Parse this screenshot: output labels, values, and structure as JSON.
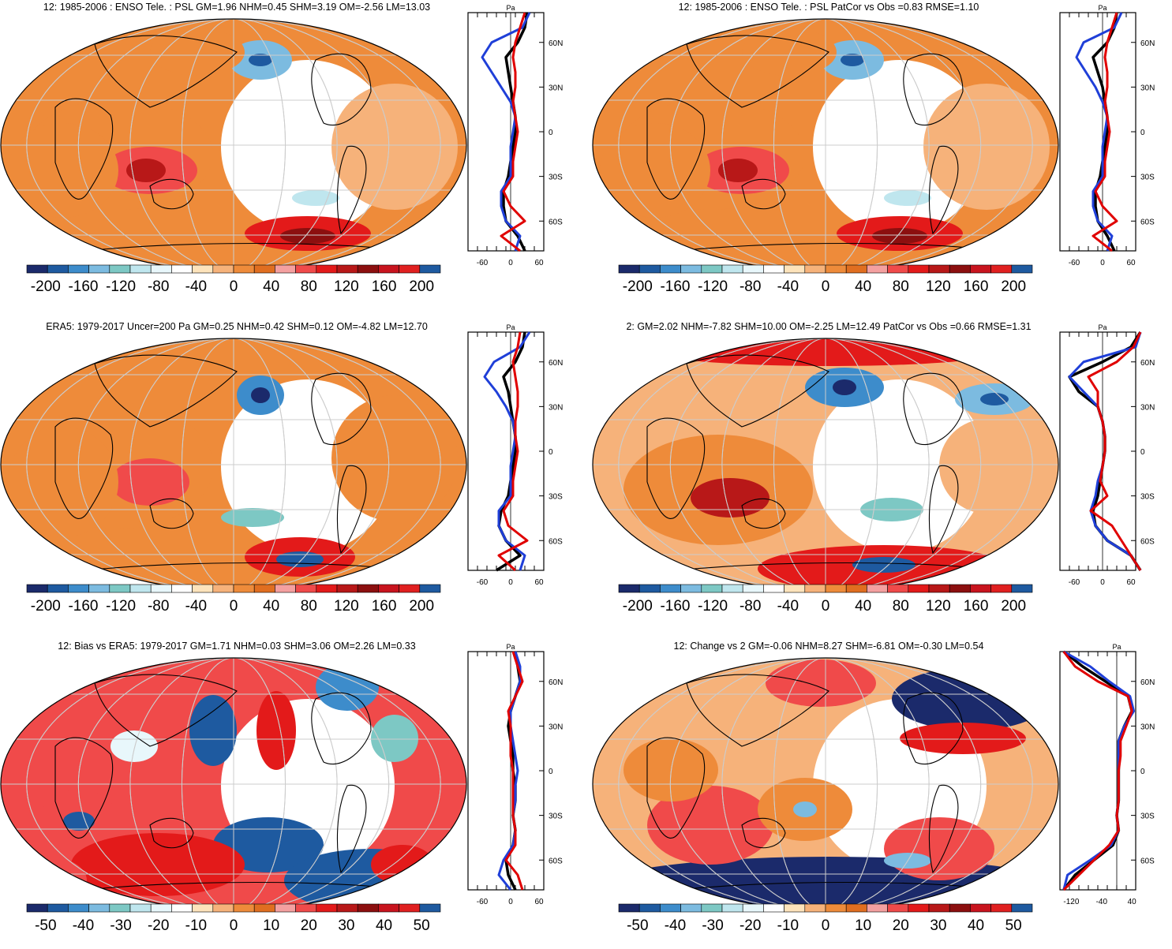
{
  "palette": [
    "#1b2a6b",
    "#1e5aa0",
    "#3d8ccb",
    "#7cbbe0",
    "#7dc8c4",
    "#bfe6ee",
    "#e8f7fb",
    "#ffffff",
    "#fde3bb",
    "#f6b27a",
    "#ee8b3a",
    "#e06e20",
    "#f4a0a0",
    "#f04a4a",
    "#e31a1a",
    "#b81818",
    "#8c0f0f",
    "#c8141e",
    "#e02020",
    "#1e5aa0"
  ],
  "panels": [
    {
      "title": "12: 1985-2006 : ENSO Tele. : PSL GM=1.96 NHM=0.45 SHM=3.19 OM=-2.56 LM=13.03",
      "colorbar_labels": [
        "-200",
        "-160",
        "-120",
        "-80",
        "-40",
        "0",
        "40",
        "80",
        "120",
        "160",
        "200"
      ],
      "zonal_unit": "Pa",
      "zonal_ticks": [
        "-60",
        "0",
        "60"
      ],
      "lat_labels": [
        "60N",
        "30N",
        "0",
        "30S",
        "60S"
      ]
    },
    {
      "title": "12: 1985-2006 : ENSO Tele. : PSL PatCor vs Obs =0.83 RMSE=1.10",
      "colorbar_labels": [
        "-200",
        "-160",
        "-120",
        "-80",
        "-40",
        "0",
        "40",
        "80",
        "120",
        "160",
        "200"
      ],
      "zonal_unit": "Pa",
      "zonal_ticks": [
        "-60",
        "0",
        "60"
      ],
      "lat_labels": [
        "60N",
        "30N",
        "0",
        "30S",
        "60S"
      ]
    },
    {
      "title": "ERA5: 1979-2017 Uncer=200 Pa GM=0.25 NHM=0.42 SHM=0.12 OM=-4.82 LM=12.70",
      "colorbar_labels": [
        "-200",
        "-160",
        "-120",
        "-80",
        "-40",
        "0",
        "40",
        "80",
        "120",
        "160",
        "200"
      ],
      "zonal_unit": "Pa",
      "zonal_ticks": [
        "-60",
        "0",
        "60"
      ],
      "lat_labels": [
        "60N",
        "30N",
        "0",
        "30S",
        "60S"
      ]
    },
    {
      "title": "2: GM=2.02 NHM=-7.82 SHM=10.00 OM=-2.25 LM=12.49 PatCor vs Obs =0.66 RMSE=1.31",
      "colorbar_labels": [
        "-200",
        "-160",
        "-120",
        "-80",
        "-40",
        "0",
        "40",
        "80",
        "120",
        "160",
        "200"
      ],
      "zonal_unit": "Pa",
      "zonal_ticks": [
        "-60",
        "0",
        "60"
      ],
      "lat_labels": [
        "60N",
        "30N",
        "0",
        "30S",
        "60S"
      ]
    },
    {
      "title": "12: Bias vs ERA5: 1979-2017 GM=1.71 NHM=0.03 SHM=3.06 OM=2.26 LM=0.33",
      "colorbar_labels": [
        "-50",
        "-40",
        "-30",
        "-20",
        "-10",
        "0",
        "10",
        "20",
        "30",
        "40",
        "50"
      ],
      "zonal_unit": "Pa",
      "zonal_ticks": [
        "-60",
        "0",
        "60"
      ],
      "lat_labels": [
        "60N",
        "30N",
        "0",
        "30S",
        "60S"
      ]
    },
    {
      "title": "12: Change vs 2 GM=-0.06 NHM=8.27 SHM=-6.81 OM=-0.30 LM=0.54",
      "colorbar_labels": [
        "-50",
        "-40",
        "-30",
        "-20",
        "-10",
        "0",
        "10",
        "20",
        "30",
        "40",
        "50"
      ],
      "zonal_unit": "Pa",
      "zonal_ticks": [
        "-120",
        "-40",
        "40"
      ],
      "lat_labels": [
        "60N",
        "30N",
        "0",
        "30S",
        "60S"
      ]
    }
  ],
  "chart_data": [
    {
      "type": "heatmap",
      "title": "12: 1985-2006 : ENSO Tele. : PSL GM=1.96 NHM=0.45 SHM=3.19 OM=-2.56 LM=13.03",
      "colorbar_range": [
        -200,
        200
      ],
      "zonal_mean": {
        "x_range": [
          -90,
          70
        ],
        "lat": [
          80,
          70,
          60,
          50,
          40,
          30,
          20,
          10,
          0,
          -10,
          -20,
          -30,
          -40,
          -50,
          -60,
          -70,
          -80
        ],
        "series": [
          {
            "color": "#000000",
            "values": [
              35,
              30,
              15,
              -10,
              -5,
              0,
              5,
              10,
              10,
              5,
              0,
              -5,
              -15,
              -15,
              -10,
              15,
              30
            ]
          },
          {
            "color": "#1f3fd8",
            "values": [
              40,
              25,
              -40,
              -60,
              -40,
              -20,
              0,
              10,
              5,
              0,
              0,
              0,
              -20,
              -20,
              -10,
              20,
              10
            ]
          },
          {
            "color": "#e00000",
            "values": [
              30,
              20,
              10,
              5,
              10,
              10,
              5,
              10,
              15,
              10,
              5,
              5,
              -15,
              0,
              30,
              -20,
              20
            ]
          }
        ]
      }
    },
    {
      "type": "heatmap",
      "title": "12: 1985-2006 : ENSO Tele. : PSL PatCor vs Obs =0.83 RMSE=1.10",
      "colorbar_range": [
        -200,
        200
      ],
      "zonal_mean": {
        "x_range": [
          -90,
          70
        ],
        "lat": [
          80,
          70,
          60,
          50,
          40,
          30,
          20,
          10,
          0,
          -10,
          -20,
          -30,
          -40,
          -50,
          -60,
          -70,
          -80
        ],
        "series": [
          {
            "color": "#000000",
            "values": [
              30,
              25,
              10,
              -20,
              -10,
              0,
              5,
              10,
              10,
              5,
              0,
              -5,
              -15,
              -15,
              -10,
              10,
              25
            ]
          },
          {
            "color": "#1f3fd8",
            "values": [
              40,
              25,
              -40,
              -55,
              -35,
              -15,
              0,
              10,
              5,
              0,
              0,
              0,
              -20,
              -20,
              -10,
              20,
              10
            ]
          },
          {
            "color": "#e00000",
            "values": [
              30,
              20,
              10,
              5,
              10,
              10,
              5,
              10,
              15,
              10,
              5,
              5,
              -15,
              0,
              30,
              -20,
              20
            ]
          }
        ]
      }
    },
    {
      "type": "heatmap",
      "title": "ERA5: 1979-2017 Uncer=200 Pa GM=0.25 NHM=0.42 SHM=0.12 OM=-4.82 LM=12.70",
      "colorbar_range": [
        -200,
        200
      ],
      "zonal_mean": {
        "x_range": [
          -90,
          70
        ],
        "lat": [
          80,
          70,
          60,
          50,
          40,
          30,
          20,
          10,
          0,
          -10,
          -20,
          -30,
          -40,
          -50,
          -60,
          -70,
          -80
        ],
        "series": [
          {
            "color": "#000000",
            "values": [
              30,
              25,
              10,
              -15,
              -5,
              0,
              5,
              10,
              10,
              5,
              0,
              -5,
              -20,
              -25,
              -10,
              20,
              -30
            ]
          },
          {
            "color": "#1f3fd8",
            "values": [
              40,
              20,
              -35,
              -55,
              -30,
              -10,
              5,
              10,
              5,
              0,
              0,
              0,
              -25,
              -25,
              -10,
              30,
              20
            ]
          },
          {
            "color": "#e00000",
            "values": [
              20,
              15,
              5,
              10,
              15,
              15,
              10,
              10,
              15,
              10,
              5,
              5,
              -15,
              -5,
              35,
              -25,
              10
            ]
          }
        ]
      }
    },
    {
      "type": "heatmap",
      "title": "2: GM=2.02 NHM=-7.82 SHM=10.00 OM=-2.25 LM=12.49 PatCor vs Obs =0.66 RMSE=1.31",
      "colorbar_range": [
        -200,
        200
      ],
      "zonal_mean": {
        "x_range": [
          -90,
          70
        ],
        "lat": [
          80,
          70,
          60,
          50,
          40,
          30,
          20,
          10,
          0,
          -10,
          -20,
          -30,
          -40,
          -50,
          -60,
          -70,
          -80
        ],
        "series": [
          {
            "color": "#000000",
            "values": [
              80,
              60,
              0,
              -70,
              -50,
              -10,
              0,
              5,
              5,
              0,
              -5,
              -10,
              -20,
              -15,
              10,
              60,
              80
            ]
          },
          {
            "color": "#1f3fd8",
            "values": [
              80,
              70,
              -40,
              -70,
              -40,
              -10,
              0,
              5,
              5,
              0,
              -10,
              -15,
              -25,
              -15,
              10,
              60,
              80
            ]
          },
          {
            "color": "#e00000",
            "values": [
              80,
              65,
              30,
              -30,
              -10,
              -10,
              0,
              5,
              5,
              0,
              -5,
              10,
              -25,
              20,
              40,
              60,
              80
            ]
          }
        ]
      }
    },
    {
      "type": "heatmap",
      "title": "12: Bias vs ERA5: 1979-2017 GM=1.71 NHM=0.03 SHM=3.06 OM=2.26 LM=0.33",
      "colorbar_range": [
        -50,
        50
      ],
      "zonal_mean": {
        "x_range": [
          -90,
          70
        ],
        "lat": [
          80,
          70,
          60,
          50,
          40,
          30,
          20,
          10,
          0,
          -10,
          -20,
          -30,
          -40,
          -50,
          -60,
          -70,
          -80
        ],
        "series": [
          {
            "color": "#000000",
            "values": [
              10,
              15,
              20,
              10,
              0,
              -5,
              0,
              5,
              5,
              10,
              10,
              5,
              10,
              5,
              -10,
              -5,
              10
            ]
          },
          {
            "color": "#1f3fd8",
            "values": [
              10,
              20,
              20,
              10,
              0,
              0,
              5,
              10,
              15,
              10,
              10,
              5,
              10,
              5,
              -15,
              -25,
              0
            ]
          },
          {
            "color": "#e00000",
            "values": [
              5,
              15,
              25,
              10,
              -5,
              0,
              0,
              0,
              5,
              5,
              5,
              5,
              10,
              10,
              -10,
              15,
              25
            ]
          }
        ]
      }
    },
    {
      "type": "heatmap",
      "title": "12: Change vs 2 GM=-0.06 NHM=8.27 SHM=-6.81 OM=-0.30 LM=0.54",
      "colorbar_range": [
        -50,
        50
      ],
      "zonal_mean": {
        "x_range": [
          -150,
          50
        ],
        "lat": [
          80,
          70,
          60,
          50,
          40,
          30,
          20,
          10,
          0,
          -10,
          -20,
          -30,
          -40,
          -50,
          -60,
          -70,
          -80
        ],
        "series": [
          {
            "color": "#000000",
            "values": [
              -140,
              -90,
              -30,
              30,
              40,
              20,
              5,
              5,
              5,
              5,
              5,
              0,
              5,
              -10,
              -60,
              -110,
              -140
            ]
          },
          {
            "color": "#1f3fd8",
            "values": [
              -140,
              -70,
              -20,
              35,
              45,
              20,
              5,
              5,
              5,
              5,
              5,
              0,
              5,
              -15,
              -70,
              -130,
              -140
            ]
          },
          {
            "color": "#e00000",
            "values": [
              -140,
              -110,
              -50,
              30,
              40,
              25,
              10,
              10,
              5,
              5,
              5,
              0,
              5,
              -20,
              -60,
              -100,
              -140
            ]
          }
        ]
      }
    }
  ]
}
